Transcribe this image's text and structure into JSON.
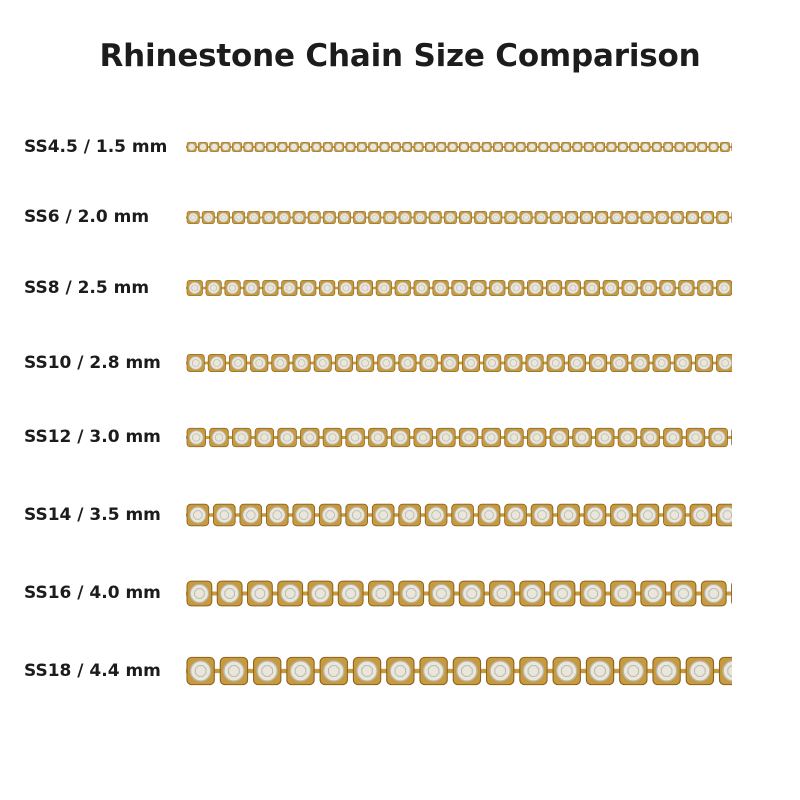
{
  "title": "Rhinestone Chain Size Comparison",
  "colors": {
    "metal": "#c79a3e",
    "metal_dark": "#8a6320",
    "stone": "#e9e6dc",
    "stone_shade": "#b9b4a6",
    "text": "#1c1c1c"
  },
  "rows": [
    {
      "label": "SS4.5 / 1.5 mm",
      "size_mm": 1.5
    },
    {
      "label": "SS6 / 2.0 mm",
      "size_mm": 2.0
    },
    {
      "label": "SS8 / 2.5 mm",
      "size_mm": 2.5
    },
    {
      "label": "SS10 / 2.8 mm",
      "size_mm": 2.8
    },
    {
      "label": "SS12 / 3.0 mm",
      "size_mm": 3.0
    },
    {
      "label": "SS14 / 3.5 mm",
      "size_mm": 3.5
    },
    {
      "label": "SS16 / 4.0 mm",
      "size_mm": 4.0
    },
    {
      "label": "SS18 / 4.4 mm",
      "size_mm": 4.4
    }
  ]
}
